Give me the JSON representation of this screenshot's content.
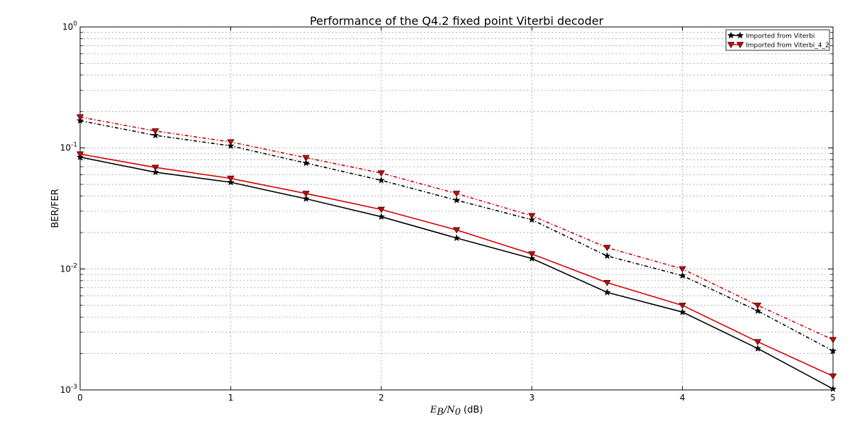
{
  "chart_data": {
    "type": "line",
    "title": "Performance of the Q4.2 fixed point Viterbi decoder",
    "xlabel_math": "E_B/N_0",
    "xlabel_math_parts": [
      "E",
      "B",
      "/N",
      "0"
    ],
    "xlabel_unit": "(dB)",
    "ylabel": "BER/FER",
    "yscale": "log",
    "grid": true,
    "legend_position": "top-right",
    "xlim": [
      0,
      5
    ],
    "ylim": [
      0.001,
      1
    ],
    "x_ticks": [
      "0",
      "1",
      "2",
      "3",
      "4",
      "5"
    ],
    "y_ticks": [
      {
        "base": "10",
        "exp": "-3"
      },
      {
        "base": "10",
        "exp": "-2"
      },
      {
        "base": "10",
        "exp": "-1"
      },
      {
        "base": "10",
        "exp": "0"
      }
    ],
    "x": [
      0,
      0.5,
      1,
      1.5,
      2,
      2.5,
      3,
      3.5,
      4,
      4.5,
      5
    ],
    "series": [
      {
        "name": "Imported from Viterbi",
        "color": "#000000",
        "marker": "star",
        "curves": [
          {
            "linestyle": "solid",
            "values": [
              0.084,
              0.063,
              0.052,
              0.038,
              0.027,
              0.018,
              0.0122,
              0.0064,
              0.0044,
              0.0022,
              0.00102
            ]
          },
          {
            "linestyle": "dashdot",
            "values": [
              0.168,
              0.127,
              0.104,
              0.075,
              0.054,
              0.037,
              0.0255,
              0.0128,
              0.0088,
              0.0045,
              0.0021
            ]
          }
        ]
      },
      {
        "name": "Imported from Viterbi_4_2",
        "color": "#d40000",
        "marker": "triangle-down",
        "curves": [
          {
            "linestyle": "solid",
            "values": [
              0.089,
              0.069,
              0.056,
              0.042,
              0.031,
              0.021,
              0.0133,
              0.0077,
              0.005,
              0.0025,
              0.0013
            ]
          },
          {
            "linestyle": "dashdot",
            "values": [
              0.18,
              0.138,
              0.112,
              0.083,
              0.062,
              0.042,
              0.0275,
              0.015,
              0.01,
              0.005,
              0.0026
            ]
          }
        ]
      }
    ]
  }
}
